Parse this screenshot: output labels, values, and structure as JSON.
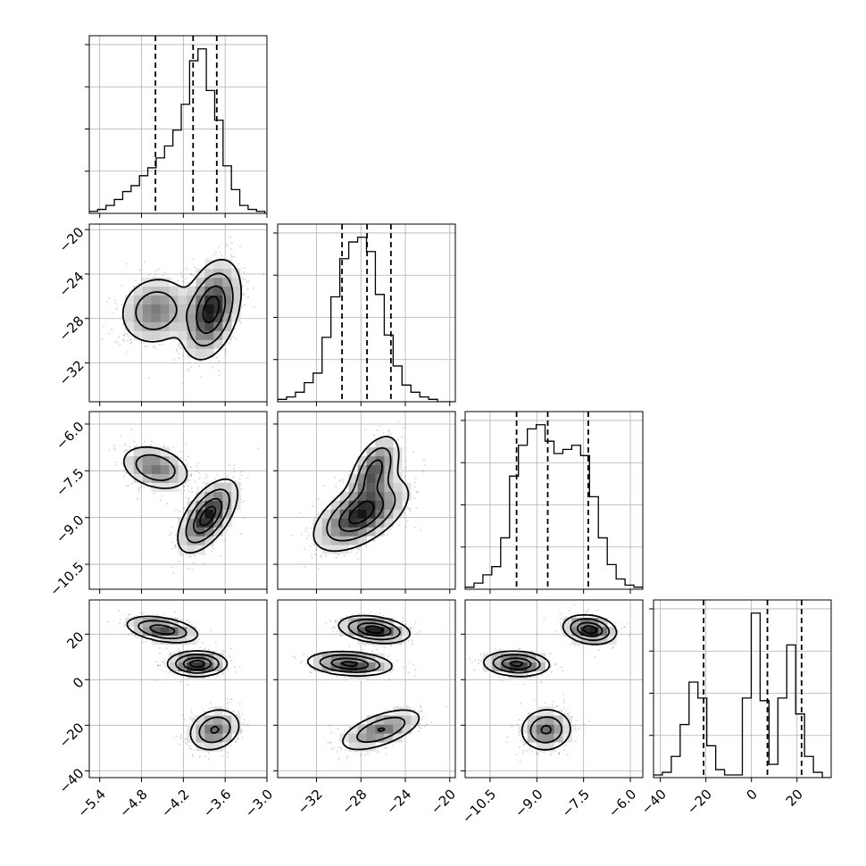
{
  "chart_data": {
    "type": "corner",
    "n_params": 4,
    "params": [
      {
        "name": "",
        "range": [
          -5.55,
          -3.0
        ],
        "ticks": [
          -5.4,
          -4.8,
          -4.2,
          -3.6,
          -3.0
        ],
        "tick_labels": [
          "−5.4",
          "−4.8",
          "−4.2",
          "−3.6",
          "−3.0"
        ],
        "quantiles": [
          -4.6,
          -4.06,
          -3.72
        ]
      },
      {
        "name": "",
        "range": [
          -35.5,
          -19.5
        ],
        "ticks": [
          -32,
          -28,
          -24,
          -20
        ],
        "tick_labels": [
          "−32",
          "−28",
          "−24",
          "−20"
        ],
        "quantiles": [
          -29.7,
          -27.45,
          -25.3
        ]
      },
      {
        "name": "",
        "range": [
          -11.3,
          -5.6
        ],
        "ticks": [
          -10.5,
          -9.0,
          -7.5,
          -6.0
        ],
        "tick_labels": [
          "−10.5",
          "−9.0",
          "−7.5",
          "−6.0"
        ],
        "quantiles": [
          -9.65,
          -8.65,
          -7.35
        ]
      },
      {
        "name": "",
        "range": [
          -43,
          35
        ],
        "ticks": [
          -40,
          -20,
          0,
          20
        ],
        "tick_labels": [
          "−40",
          "−20",
          "0",
          "20"
        ],
        "quantiles": [
          -21,
          7,
          22
        ]
      }
    ],
    "histograms": [
      {
        "param": 0,
        "edges_start": -5.55,
        "bin_width": 0.12,
        "counts": [
          1,
          2,
          4,
          7,
          11,
          14,
          19,
          23,
          28,
          34,
          42,
          55,
          77,
          83,
          62,
          47,
          24,
          12,
          4,
          2,
          1
        ],
        "peak": 83
      },
      {
        "param": 1,
        "edges_start": -35.5,
        "bin_width": 0.8,
        "counts": [
          1,
          2,
          4,
          8,
          12,
          27,
          44,
          60,
          67,
          69,
          63,
          45,
          28,
          15,
          7,
          4,
          2,
          1,
          0,
          0
        ],
        "peak": 69
      },
      {
        "param": 2,
        "edges_start": -11.3,
        "bin_width": 0.285,
        "counts": [
          1,
          3,
          7,
          11,
          25,
          55,
          70,
          78,
          80,
          72,
          66,
          68,
          70,
          65,
          45,
          25,
          12,
          5,
          2,
          1
        ],
        "peak": 80
      },
      {
        "param": 3,
        "edges_start": -43,
        "bin_width": 3.9,
        "counts": [
          1,
          2,
          8,
          20,
          36,
          30,
          12,
          3,
          1,
          1,
          30,
          62,
          29,
          5,
          30,
          50,
          24,
          8,
          2,
          0
        ],
        "peak": 62
      }
    ],
    "panels_2d": [
      {
        "x": 0,
        "y": 1,
        "components": [
          {
            "mx": -4.6,
            "my": -27.3,
            "sx": 0.25,
            "sy": 1.5,
            "rho": 0.1,
            "w": 0.35
          },
          {
            "mx": -3.8,
            "my": -27.2,
            "sx": 0.2,
            "sy": 2.1,
            "rho": 0.35,
            "w": 0.65
          }
        ]
      },
      {
        "x": 0,
        "y": 2,
        "components": [
          {
            "mx": -4.6,
            "my": -7.4,
            "sx": 0.24,
            "sy": 0.35,
            "rho": -0.3,
            "w": 0.35
          },
          {
            "mx": -3.85,
            "my": -8.95,
            "sx": 0.2,
            "sy": 0.55,
            "rho": 0.6,
            "w": 0.65
          }
        ]
      },
      {
        "x": 0,
        "y": 3,
        "components": [
          {
            "mx": -4.5,
            "my": 22,
            "sx": 0.25,
            "sy": 2.8,
            "rho": -0.4,
            "w": 0.33
          },
          {
            "mx": -4.0,
            "my": 7,
            "sx": 0.2,
            "sy": 2.6,
            "rho": 0.0,
            "w": 0.34
          },
          {
            "mx": -3.75,
            "my": -22,
            "sx": 0.18,
            "sy": 4.5,
            "rho": 0.2,
            "w": 0.33
          }
        ]
      },
      {
        "x": 1,
        "y": 2,
        "components": [
          {
            "mx": -26.8,
            "my": -7.5,
            "sx": 1.1,
            "sy": 0.55,
            "rho": 0.5,
            "w": 0.3
          },
          {
            "mx": -28.0,
            "my": -8.9,
            "sx": 2.0,
            "sy": 0.55,
            "rho": 0.55,
            "w": 0.7
          }
        ]
      },
      {
        "x": 1,
        "y": 3,
        "components": [
          {
            "mx": -26.8,
            "my": 22,
            "sx": 1.5,
            "sy": 2.8,
            "rho": -0.3,
            "w": 0.33
          },
          {
            "mx": -29.0,
            "my": 7,
            "sx": 1.8,
            "sy": 2.5,
            "rho": -0.2,
            "w": 0.34
          },
          {
            "mx": -26.2,
            "my": -22,
            "sx": 1.8,
            "sy": 4.5,
            "rho": 0.6,
            "w": 0.33
          }
        ]
      },
      {
        "x": 2,
        "y": 3,
        "components": [
          {
            "mx": -7.3,
            "my": 22,
            "sx": 0.4,
            "sy": 3.0,
            "rho": -0.2,
            "w": 0.33
          },
          {
            "mx": -9.65,
            "my": 7,
            "sx": 0.5,
            "sy": 2.6,
            "rho": -0.1,
            "w": 0.34
          },
          {
            "mx": -8.7,
            "my": -22,
            "sx": 0.4,
            "sy": 4.5,
            "rho": 0.05,
            "w": 0.33
          }
        ]
      }
    ],
    "grid": true,
    "legend": "none"
  }
}
